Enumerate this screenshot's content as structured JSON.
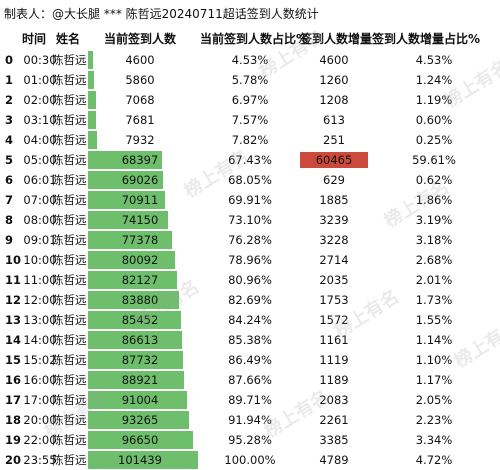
{
  "title": "制表人：@大长腿 *** 陈哲远20240711超话签到人数统计",
  "headers": {
    "time": "时间",
    "name": "姓名",
    "count": "当前签到人数",
    "pct": "当前签到人数占比%",
    "inc": "签到人数增量",
    "inc_pct": "签到人数增量占比%"
  },
  "watermark": "榜上有名",
  "colors": {
    "bar": "#6dbf6b",
    "highlight": "#cc4a3c"
  },
  "max_count": 101439,
  "rows": [
    {
      "idx": "0",
      "time": "00:30",
      "name": "陈哲远",
      "count": "4600",
      "count_value": 4600,
      "pct": "4.53%",
      "inc": "4600",
      "inc_pct": "4.53%"
    },
    {
      "idx": "1",
      "time": "01:00",
      "name": "陈哲远",
      "count": "5860",
      "count_value": 5860,
      "pct": "5.78%",
      "inc": "1260",
      "inc_pct": "1.24%"
    },
    {
      "idx": "2",
      "time": "02:00",
      "name": "陈哲远",
      "count": "7068",
      "count_value": 7068,
      "pct": "6.97%",
      "inc": "1208",
      "inc_pct": "1.19%"
    },
    {
      "idx": "3",
      "time": "03:10",
      "name": "陈哲远",
      "count": "7681",
      "count_value": 7681,
      "pct": "7.57%",
      "inc": "613",
      "inc_pct": "0.60%"
    },
    {
      "idx": "4",
      "time": "04:00",
      "name": "陈哲远",
      "count": "7932",
      "count_value": 7932,
      "pct": "7.82%",
      "inc": "251",
      "inc_pct": "0.25%"
    },
    {
      "idx": "5",
      "time": "05:00",
      "name": "陈哲远",
      "count": "68397",
      "count_value": 68397,
      "pct": "67.43%",
      "inc": "60465",
      "inc_pct": "59.61%",
      "highlight": true
    },
    {
      "idx": "6",
      "time": "06:01",
      "name": "陈哲远",
      "count": "69026",
      "count_value": 69026,
      "pct": "68.05%",
      "inc": "629",
      "inc_pct": "0.62%"
    },
    {
      "idx": "7",
      "time": "07:00",
      "name": "陈哲远",
      "count": "70911",
      "count_value": 70911,
      "pct": "69.91%",
      "inc": "1885",
      "inc_pct": "1.86%"
    },
    {
      "idx": "8",
      "time": "08:00",
      "name": "陈哲远",
      "count": "74150",
      "count_value": 74150,
      "pct": "73.10%",
      "inc": "3239",
      "inc_pct": "3.19%"
    },
    {
      "idx": "9",
      "time": "09:01",
      "name": "陈哲远",
      "count": "77378",
      "count_value": 77378,
      "pct": "76.28%",
      "inc": "3228",
      "inc_pct": "3.18%"
    },
    {
      "idx": "10",
      "time": "10:00",
      "name": "陈哲远",
      "count": "80092",
      "count_value": 80092,
      "pct": "78.96%",
      "inc": "2714",
      "inc_pct": "2.68%"
    },
    {
      "idx": "11",
      "time": "11:00",
      "name": "陈哲远",
      "count": "82127",
      "count_value": 82127,
      "pct": "80.96%",
      "inc": "2035",
      "inc_pct": "2.01%"
    },
    {
      "idx": "12",
      "time": "12:00",
      "name": "陈哲远",
      "count": "83880",
      "count_value": 83880,
      "pct": "82.69%",
      "inc": "1753",
      "inc_pct": "1.73%"
    },
    {
      "idx": "13",
      "time": "13:00",
      "name": "陈哲远",
      "count": "85452",
      "count_value": 85452,
      "pct": "84.24%",
      "inc": "1572",
      "inc_pct": "1.55%"
    },
    {
      "idx": "14",
      "time": "14:00",
      "name": "陈哲远",
      "count": "86613",
      "count_value": 86613,
      "pct": "85.38%",
      "inc": "1161",
      "inc_pct": "1.14%"
    },
    {
      "idx": "15",
      "time": "15:02",
      "name": "陈哲远",
      "count": "87732",
      "count_value": 87732,
      "pct": "86.49%",
      "inc": "1119",
      "inc_pct": "1.10%"
    },
    {
      "idx": "16",
      "time": "16:00",
      "name": "陈哲远",
      "count": "88921",
      "count_value": 88921,
      "pct": "87.66%",
      "inc": "1189",
      "inc_pct": "1.17%"
    },
    {
      "idx": "17",
      "time": "17:00",
      "name": "陈哲远",
      "count": "91004",
      "count_value": 91004,
      "pct": "89.71%",
      "inc": "2083",
      "inc_pct": "2.05%"
    },
    {
      "idx": "18",
      "time": "20:00",
      "name": "陈哲远",
      "count": "93265",
      "count_value": 93265,
      "pct": "91.94%",
      "inc": "2261",
      "inc_pct": "2.23%"
    },
    {
      "idx": "19",
      "time": "22:00",
      "name": "陈哲远",
      "count": "96650",
      "count_value": 96650,
      "pct": "95.28%",
      "inc": "3385",
      "inc_pct": "3.34%"
    },
    {
      "idx": "20",
      "time": "23:55",
      "name": "陈哲远",
      "count": "101439",
      "count_value": 101439,
      "pct": "100.00%",
      "inc": "4789",
      "inc_pct": "4.72%"
    }
  ]
}
